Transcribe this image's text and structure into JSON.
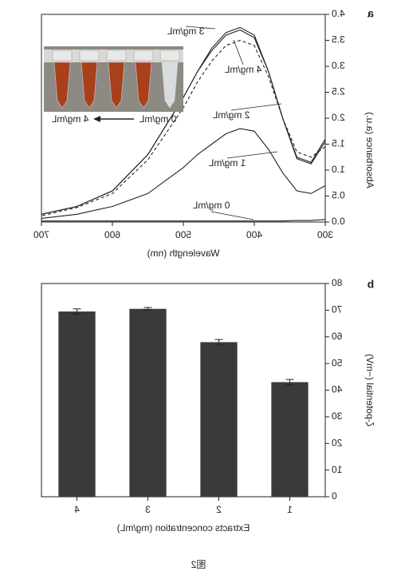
{
  "chart_data": [
    {
      "type": "line",
      "panel_label": "a",
      "xlabel": "Wavelength (nm)",
      "ylabel": "Absorbance (a.u.)",
      "x": [
        300,
        320,
        340,
        360,
        380,
        400,
        420,
        440,
        460,
        480,
        500,
        550,
        600,
        650,
        700
      ],
      "xlim": [
        300,
        700
      ],
      "xticks": [
        300,
        400,
        500,
        600,
        700
      ],
      "ylim": [
        0,
        4
      ],
      "yticks": [
        {
          "value": 0,
          "label": "0.0"
        },
        0.5,
        {
          "value": 1,
          "label": "1.0"
        },
        1.5,
        {
          "value": 2,
          "label": "2.0"
        },
        2.5,
        {
          "value": 3,
          "label": "3.0"
        },
        3.5,
        {
          "value": 4,
          "label": "4.0"
        }
      ],
      "series": [
        {
          "name": "3 mg/mL",
          "color": "#222222",
          "values": [
            1.55,
            1.12,
            1.22,
            2.0,
            2.9,
            3.6,
            3.75,
            3.65,
            3.35,
            2.9,
            2.4,
            1.3,
            0.6,
            0.3,
            0.15
          ]
        },
        {
          "name": "4 mg/mL",
          "color": "#222222",
          "values": [
            1.6,
            1.15,
            1.25,
            2.0,
            2.9,
            3.55,
            3.7,
            3.6,
            3.3,
            2.9,
            2.4,
            1.3,
            0.6,
            0.3,
            0.15
          ]
        },
        {
          "name": "2 mg/mL",
          "color": "#222222",
          "dashed": true,
          "values": [
            1.45,
            1.25,
            1.35,
            2.0,
            2.8,
            3.4,
            3.5,
            3.4,
            3.1,
            2.7,
            2.2,
            1.2,
            0.55,
            0.28,
            0.12
          ]
        },
        {
          "name": "1 mg/mL",
          "color": "#222222",
          "values": [
            0.7,
            0.55,
            0.6,
            0.95,
            1.4,
            1.75,
            1.8,
            1.7,
            1.5,
            1.3,
            1.05,
            0.55,
            0.3,
            0.15,
            0.07
          ]
        },
        {
          "name": "0 mg/mL",
          "color": "#222222",
          "values": [
            0.05,
            0.03,
            0.03,
            0.02,
            0.02,
            0.02,
            0.02,
            0.02,
            0.02,
            0.02,
            0.02,
            0.02,
            0.02,
            0.02,
            0.02
          ]
        }
      ],
      "inset": {
        "labels": [
          "0 mg/mL",
          "4 mg/mL"
        ]
      }
    },
    {
      "type": "bar",
      "panel_label": "b",
      "xlabel": "Extracts concentration (mg/mL)",
      "ylabel": "ζ-potential (−mV)",
      "categories": [
        "1",
        "2",
        "3",
        "4"
      ],
      "values": [
        43,
        58,
        70.5,
        69.5
      ],
      "errors": [
        1,
        1,
        0.5,
        1
      ],
      "color": "#3a3a3a",
      "ylim": [
        0,
        80
      ],
      "yticks": [
        0,
        10,
        20,
        30,
        40,
        50,
        60,
        70,
        80
      ]
    }
  ],
  "caption": "图2"
}
